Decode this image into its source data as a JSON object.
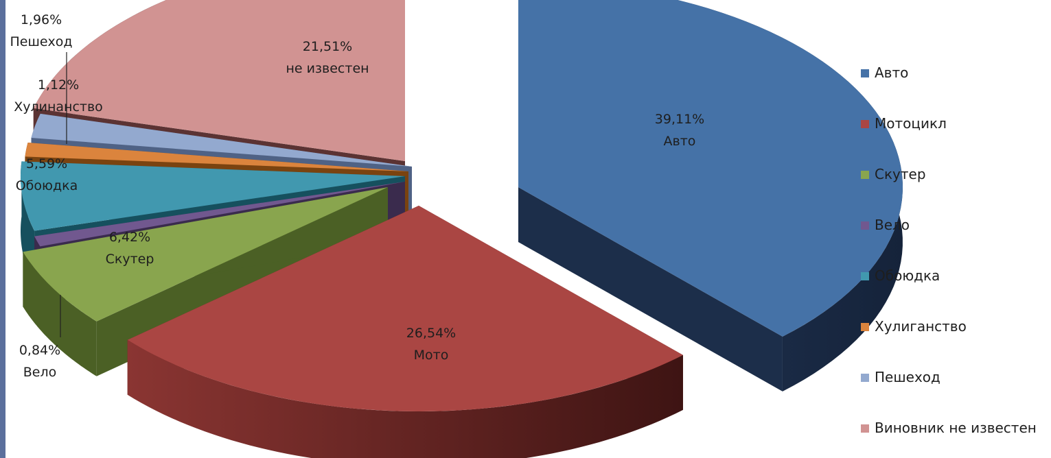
{
  "chart_data": {
    "type": "pie",
    "variant": "3d-exploded",
    "legend_position": "right",
    "slices": [
      {
        "legend": "Авто",
        "value": 39.11,
        "percent_label": "39,11%",
        "category_label": "Авто",
        "color": "#4572a7",
        "side_color": "#1c2e4a"
      },
      {
        "legend": "Мотоцикл",
        "value": 26.54,
        "percent_label": "26,54%",
        "category_label": "Мото",
        "color": "#aa4643",
        "side_color": "#5e1f1d"
      },
      {
        "legend": "Скутер",
        "value": 6.42,
        "percent_label": "6,42%",
        "category_label": "Скутер",
        "color": "#89a54e",
        "side_color": "#4b6025"
      },
      {
        "legend": "Вело",
        "value": 0.84,
        "percent_label": "0,84%",
        "category_label": "Вело",
        "color": "#71588f",
        "side_color": "#3a2b4d"
      },
      {
        "legend": "Обоюдка",
        "value": 5.59,
        "percent_label": "5,59%",
        "category_label": "Обоюдка",
        "color": "#4198af",
        "side_color": "#16505e"
      },
      {
        "legend": "Хулиганство",
        "value": 1.12,
        "percent_label": "1,12%",
        "category_label": "Хулинанство",
        "color": "#db843d",
        "side_color": "#7a4310"
      },
      {
        "legend": "Пешеход",
        "value": 1.96,
        "percent_label": "1,96%",
        "category_label": "Пешеход",
        "color": "#93a9cf",
        "side_color": "#4f6285"
      },
      {
        "legend": "Виновник не известен",
        "value": 21.51,
        "percent_label": "21,51%",
        "category_label": "не известен",
        "color": "#d19392",
        "side_color": "#5b3333"
      }
    ]
  }
}
